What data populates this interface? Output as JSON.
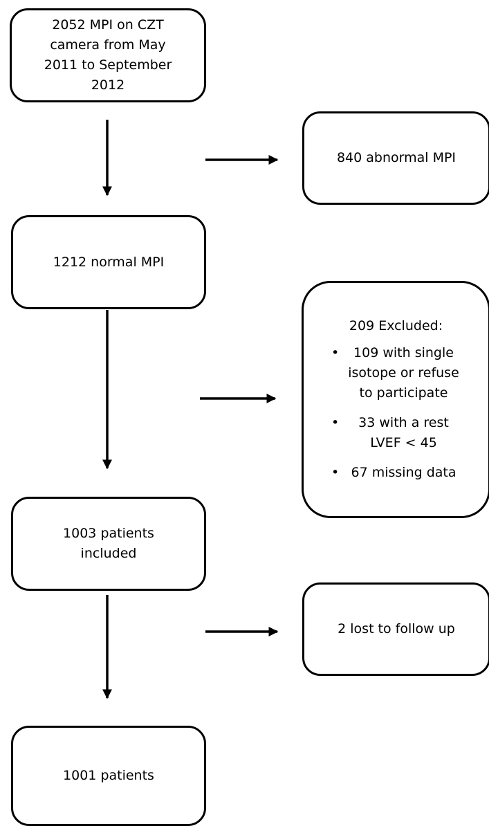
{
  "flowchart": {
    "boxes": {
      "initial": {
        "lines": [
          "2052 MPI on CZT",
          "camera from May",
          "2011 to September",
          "2012"
        ]
      },
      "abnormal": {
        "lines": [
          "840 abnormal MPI"
        ]
      },
      "normal": {
        "lines": [
          "1212 normal MPI"
        ]
      },
      "excluded": {
        "title": "209 Excluded:",
        "items": [
          {
            "lines": [
              "109 with single",
              "isotope or refuse",
              "to participate"
            ]
          },
          {
            "lines": [
              "33 with a  rest",
              "LVEF < 45"
            ]
          },
          {
            "lines": [
              "67 missing data"
            ]
          }
        ]
      },
      "included": {
        "lines": [
          "1003 patients",
          "included"
        ]
      },
      "lost": {
        "lines": [
          "2 lost to follow up"
        ]
      },
      "final": {
        "lines": [
          "1001 patients"
        ]
      }
    },
    "bullet_char": "•"
  }
}
